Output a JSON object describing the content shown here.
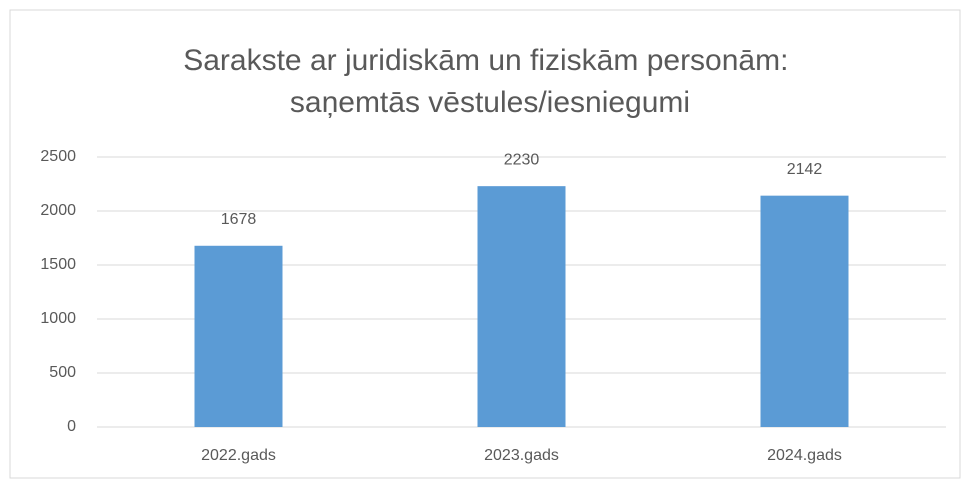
{
  "chart_data": {
    "type": "bar",
    "title": "Sarakste ar juridiskām un fiziskām personām: saņemtās vēstules/iesniegumi",
    "categories": [
      "2022.gads",
      "2023.gads",
      "2024.gads"
    ],
    "values": [
      1678,
      2230,
      2142
    ],
    "color": "#5b9bd5",
    "ylim": [
      0,
      2500
    ],
    "yticks": [
      0,
      500,
      1000,
      1500,
      2000,
      2500
    ],
    "grid": true
  }
}
